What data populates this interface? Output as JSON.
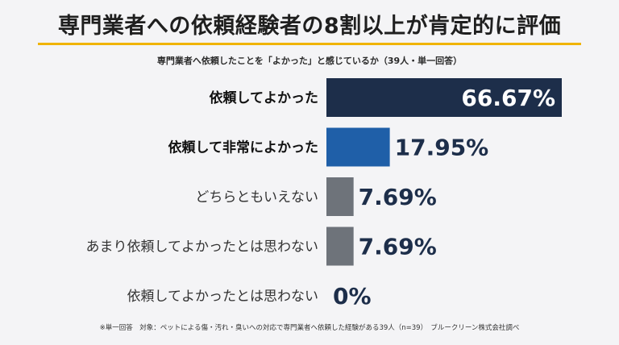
{
  "title": "専門業者への依頼経験者の8割以上が肯定的に評価",
  "subtitle": "専門業者へ依頼したことを「よかった」と感じているか（39人・単一回答）",
  "footnote": "※単一回答　対象：ペットによる傷・汚れ・臭いへの対応で専門業者へ依頼した経験がある39人（n=39）　ブルークリーン株式会社調べ",
  "colors": {
    "accent_rule": "#f0b400",
    "bar_dark_navy": "#1d2e4a",
    "bar_blue": "#1f5fa8",
    "bar_gray": "#6e737a",
    "value_text": "#1d2e4a",
    "background": "#f4f4f6"
  },
  "chart_data": {
    "type": "bar",
    "orientation": "horizontal",
    "categories": [
      "依頼してよかった",
      "依頼して非常によかった",
      "どちらともいえない",
      "あまり依頼してよかったとは思わない",
      "依頼してよかったとは思わない"
    ],
    "values": [
      66.67,
      17.95,
      7.69,
      7.69,
      0
    ],
    "value_labels": [
      "66.67%",
      "17.95%",
      "7.69%",
      "7.69%",
      "0%"
    ],
    "bold_categories": [
      true,
      true,
      false,
      false,
      false
    ],
    "bar_colors": [
      "#1d2e4a",
      "#1f5fa8",
      "#6e737a",
      "#6e737a",
      "#6e737a"
    ],
    "xlim": [
      0,
      70
    ],
    "grid": false,
    "legend": "none"
  }
}
